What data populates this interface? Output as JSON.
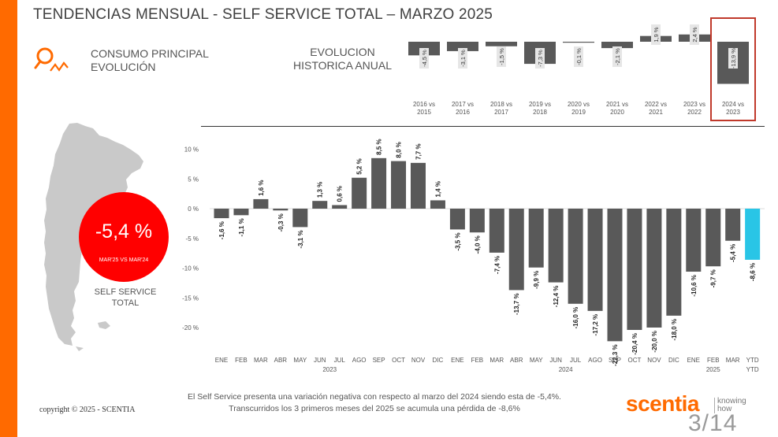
{
  "title": "TENDENCIAS MENSUAL - SELF SERVICE TOTAL –   MARZO 2025",
  "consumo_label": [
    "CONSUMO PRINCIPAL",
    "EVOLUCIÓN"
  ],
  "hist_label": [
    "EVOLUCION",
    "HISTORICA ANUAL"
  ],
  "kpi": {
    "value": "-5,4 %",
    "sub": "MAR'25 VS MAR'24",
    "caption": [
      "SELF SERVICE",
      "TOTAL"
    ]
  },
  "footnote": [
    "El Self Service presenta una variación negativa con respecto al marzo del 2024 siendo esta de -5,4%.",
    "Transcurridos los 3 primeros meses del 2025 se acumula una pérdida de -8,6%"
  ],
  "copyright": "copyright © 2025 - SCENTIA",
  "brand": {
    "name": "scentia",
    "tagline": [
      "knowing",
      "how"
    ],
    "page": "3/14"
  },
  "colors": {
    "accent": "#ff6a00",
    "bar": "#595959",
    "highlight": "#29c5e6",
    "kpi": "#ff0000",
    "box": "#c0392b"
  },
  "chart_data": [
    {
      "type": "bar",
      "categories": [
        [
          "2016 vs",
          "2015"
        ],
        [
          "2017 vs",
          "2016"
        ],
        [
          "2018 vs",
          "2017"
        ],
        [
          "2019 vs",
          "2018"
        ],
        [
          "2020 vs",
          "2019"
        ],
        [
          "2021 vs",
          "2020"
        ],
        [
          "2022 vs",
          "2021"
        ],
        [
          "2023 vs",
          "2022"
        ],
        [
          "2024 vs",
          "2023"
        ]
      ],
      "values": [
        -4.5,
        -3.1,
        -1.5,
        -7.3,
        -0.1,
        -2.1,
        1.9,
        2.4,
        -13.9
      ],
      "labels": [
        "-4,5 %",
        "-3,1 %",
        "-1,5 %",
        "-7,3 %",
        "-0,1 %",
        "-2,1 %",
        "1,9 %",
        "2,4 %",
        "-13,9 %"
      ],
      "highlight_index": 8
    },
    {
      "type": "bar",
      "categories": [
        "ENE",
        "FEB",
        "MAR",
        "ABR",
        "MAY",
        "JUN",
        "JUL",
        "AGO",
        "SEP",
        "OCT",
        "NOV",
        "DIC",
        "ENE",
        "FEB",
        "MAR",
        "ABR",
        "MAY",
        "JUN",
        "JUL",
        "AGO",
        "SEP",
        "OCT",
        "NOV",
        "DIC",
        "ENE",
        "FEB",
        "MAR",
        "YTD"
      ],
      "values": [
        -1.6,
        -1.1,
        1.6,
        -0.3,
        -3.1,
        1.3,
        0.6,
        5.2,
        8.5,
        8.0,
        7.7,
        1.4,
        -3.5,
        -4.0,
        -7.4,
        -13.7,
        -9.9,
        -12.4,
        -16.0,
        -17.2,
        -22.3,
        -20.4,
        -20.0,
        -18.0,
        -10.6,
        -9.7,
        -5.4,
        -8.6
      ],
      "labels": [
        "-1,6 %",
        "-1,1 %",
        "1,6 %",
        "-0,3 %",
        "-3,1 %",
        "1,3 %",
        "0,6 %",
        "5,2 %",
        "8,5 %",
        "8,0 %",
        "7,7 %",
        "1,4 %",
        "-3,5 %",
        "-4,0 %",
        "-7,4 %",
        "-13,7 %",
        "-9,9 %",
        "-12,4 %",
        "-16,0 %",
        "-17,2 %",
        "-22,3 %",
        "-20,4 %",
        "-20,0 %",
        "-18,0 %",
        "-10,6 %",
        "-9,7 %",
        "-5,4 %",
        "-8,6 %"
      ],
      "year_labels": [
        "2023",
        "2024",
        "2025",
        "YTD"
      ],
      "y_ticks": [
        10,
        5,
        0,
        -5,
        -10,
        -15,
        -20
      ],
      "y_tick_labels": [
        "10 %",
        "5 %",
        "0 %",
        "-5 %",
        "-10 %",
        "-15 %",
        "-20 %"
      ],
      "ylim": [
        -22.3,
        10
      ],
      "highlight_index": 27
    }
  ]
}
